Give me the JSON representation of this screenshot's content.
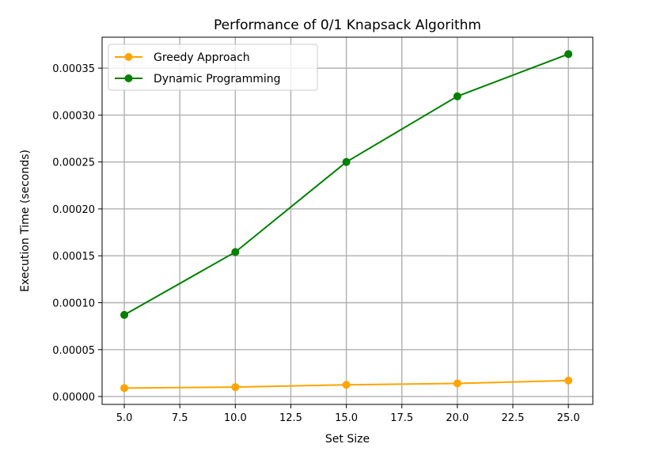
{
  "chart_data": {
    "type": "line",
    "title": "Performance of 0/1 Knapsack Algorithm",
    "xlabel": "Set Size",
    "ylabel": "Execution Time (seconds)",
    "x": [
      5,
      10,
      15,
      20,
      25
    ],
    "xlim": [
      4,
      26.1
    ],
    "ylim": [
      -8.4e-06,
      0.000383
    ],
    "xticks": [
      5,
      7.5,
      10,
      12.5,
      15,
      17.5,
      20,
      22.5,
      25
    ],
    "xtick_labels": [
      "5.0",
      "7.5",
      "10.0",
      "12.5",
      "15.0",
      "17.5",
      "20.0",
      "22.5",
      "25.0"
    ],
    "yticks": [
      0,
      5e-05,
      0.0001,
      0.00015,
      0.0002,
      0.00025,
      0.0003,
      0.00035
    ],
    "ytick_labels": [
      "0.00000",
      "0.00005",
      "0.00010",
      "0.00015",
      "0.00020",
      "0.00025",
      "0.00030",
      "0.00035"
    ],
    "grid": true,
    "legend_position": "top-left",
    "series": [
      {
        "name": "Greedy Approach",
        "color": "#ffa500",
        "marker": "circle",
        "values": [
          9e-06,
          1e-05,
          1.25e-05,
          1.4e-05,
          1.7e-05
        ]
      },
      {
        "name": "Dynamic Programming",
        "color": "#008000",
        "marker": "circle",
        "values": [
          8.7e-05,
          0.000154,
          0.00025,
          0.00032,
          0.000365
        ]
      }
    ]
  }
}
